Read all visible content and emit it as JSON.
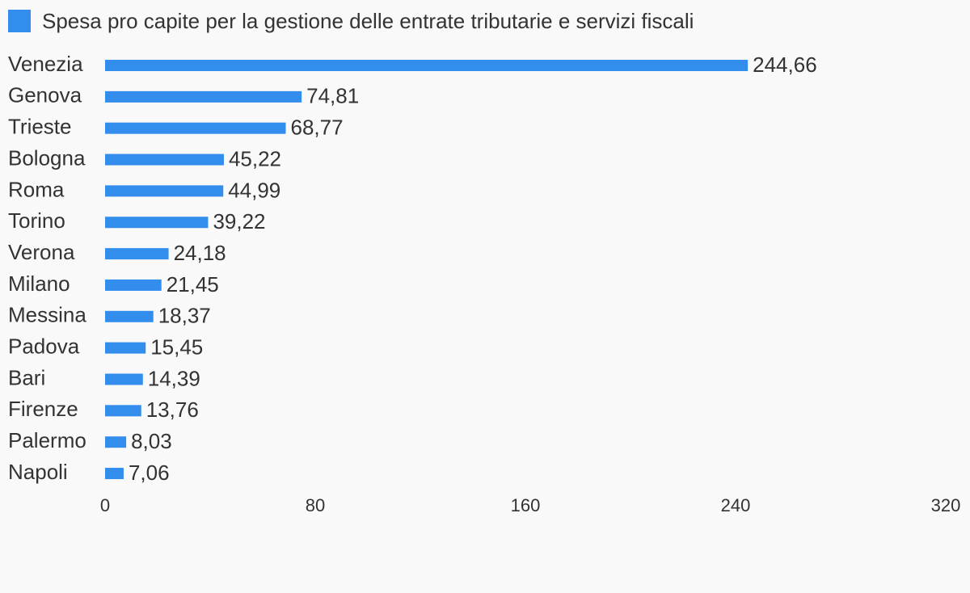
{
  "chart_data": {
    "type": "bar",
    "orientation": "horizontal",
    "series": [
      {
        "name": "Spesa pro capite per la gestione delle entrate tributarie e servizi fiscali",
        "color": "#338ded"
      }
    ],
    "categories": [
      "Venezia",
      "Genova",
      "Trieste",
      "Bologna",
      "Roma",
      "Torino",
      "Verona",
      "Milano",
      "Messina",
      "Padova",
      "Bari",
      "Firenze",
      "Palermo",
      "Napoli"
    ],
    "values": [
      244.66,
      74.81,
      68.77,
      45.22,
      44.99,
      39.22,
      24.18,
      21.45,
      18.37,
      15.45,
      14.39,
      13.76,
      8.03,
      7.06
    ],
    "value_labels": [
      "244,66",
      "74,81",
      "68,77",
      "45,22",
      "44,99",
      "39,22",
      "24,18",
      "21,45",
      "18,37",
      "15,45",
      "14,39",
      "13,76",
      "8,03",
      "7,06"
    ],
    "xlim": [
      0,
      320
    ],
    "x_ticks": [
      0,
      80,
      160,
      240,
      320
    ],
    "x_tick_labels": [
      "0",
      "80",
      "160",
      "240",
      "320"
    ],
    "grid": false,
    "legend_position": "top-left",
    "colors": {
      "bar": "#338ded",
      "text": "#333333",
      "background": "#f9f9f9"
    }
  }
}
